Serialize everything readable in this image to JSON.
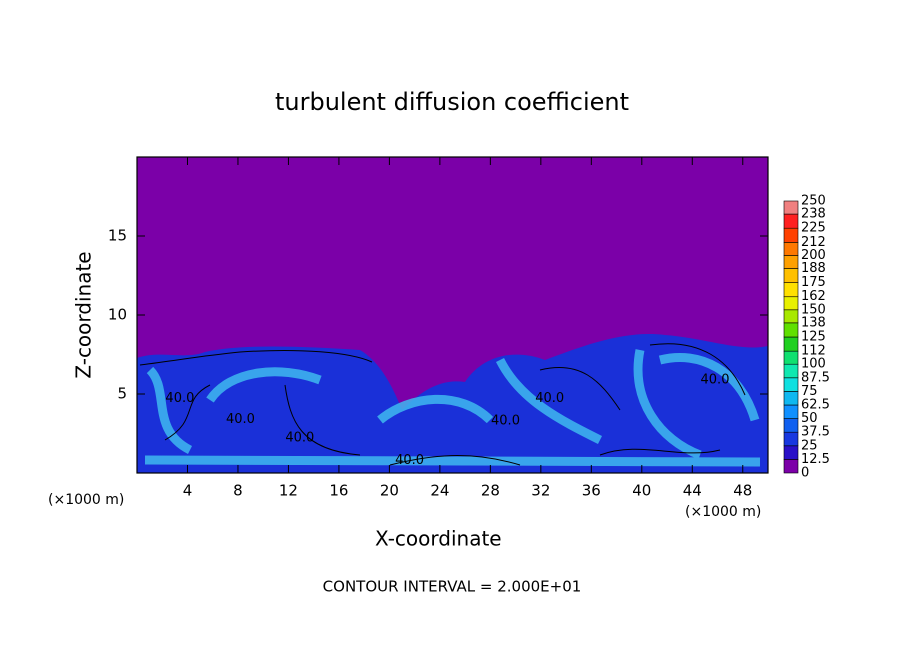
{
  "chart_data": {
    "type": "contour",
    "title": "turbulent diffusion coefficient",
    "x_label": "X-coordinate",
    "y_label": "Z-coordinate",
    "x_unit": "(×1000 m)",
    "y_unit": "(×1000 m)",
    "footer": "CONTOUR INTERVAL = 2.000E+01",
    "xlim": [
      0,
      50
    ],
    "xticks": [
      4,
      8,
      12,
      16,
      20,
      24,
      28,
      32,
      36,
      40,
      44,
      48
    ],
    "ylim": [
      0,
      20
    ],
    "yticks": [
      5,
      10,
      15
    ],
    "levels": [
      0,
      12.5,
      25,
      37.5,
      50,
      62.5,
      75,
      87.5,
      100,
      112,
      125,
      138,
      150,
      162,
      175,
      188,
      200,
      212,
      225,
      238,
      250
    ],
    "colors": [
      "#7c00a8",
      "#2a10c8",
      "#1838e0",
      "#1060f0",
      "#1090ff",
      "#10b8f0",
      "#10e0e0",
      "#10e8b0",
      "#10e070",
      "#20d020",
      "#60e000",
      "#a8e800",
      "#e8f000",
      "#ffe000",
      "#ffc000",
      "#ffa000",
      "#ff7800",
      "#ff4000",
      "#ff2020",
      "#f08080"
    ],
    "contour_labels": [
      {
        "x": 3.4,
        "y": 4.7,
        "label": "40.0"
      },
      {
        "x": 8.2,
        "y": 3.4,
        "label": "40.0"
      },
      {
        "x": 12.9,
        "y": 2.2,
        "label": "40.0"
      },
      {
        "x": 21.6,
        "y": 0.8,
        "label": "40.0"
      },
      {
        "x": 29.2,
        "y": 3.3,
        "label": "40.0"
      },
      {
        "x": 32.7,
        "y": 4.7,
        "label": "40.0"
      },
      {
        "x": 45.8,
        "y": 5.9,
        "label": "40.0"
      }
    ]
  }
}
